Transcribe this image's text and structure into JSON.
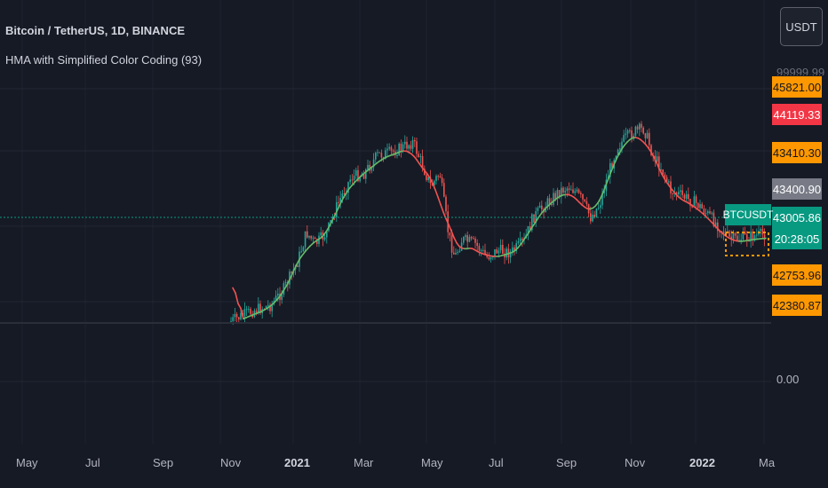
{
  "header": {
    "title": "Bitcoin / TetherUS, 1D, BINANCE",
    "indicator": "HMA with Simplified Color Coding (93)"
  },
  "currency_button": {
    "label": "USDT"
  },
  "price_scale": {
    "top_partial_label": "99999.99",
    "zero_label": "0.00",
    "tags": [
      {
        "value": "45821.00",
        "color": "#ff9800"
      },
      {
        "value": "44119.33",
        "color": "#f23645"
      },
      {
        "value": "43410.30",
        "color": "#ff9800"
      },
      {
        "value": "43400.90",
        "color": "#787b86"
      },
      {
        "value": "43005.86",
        "color": "#089981"
      },
      {
        "value": "20:28:05",
        "color": "#089981"
      },
      {
        "value": "42753.96",
        "color": "#ff9800"
      },
      {
        "value": "42380.87",
        "color": "#ff9800"
      }
    ]
  },
  "symbol_tag": "BTCUSDT",
  "time_axis": {
    "labels": [
      "May",
      "Jul",
      "Sep",
      "Nov",
      "2021",
      "Mar",
      "May",
      "Jul",
      "Sep",
      "Nov",
      "2022",
      "Ma"
    ],
    "bold_labels": [
      "2021",
      "2022"
    ]
  },
  "colors": {
    "background": "#161a25",
    "up_candle": "#26a69a",
    "down_candle": "#ef5350",
    "hma_up": "#66bb6a",
    "hma_down": "#ef5350",
    "price_line": "#089981"
  }
}
